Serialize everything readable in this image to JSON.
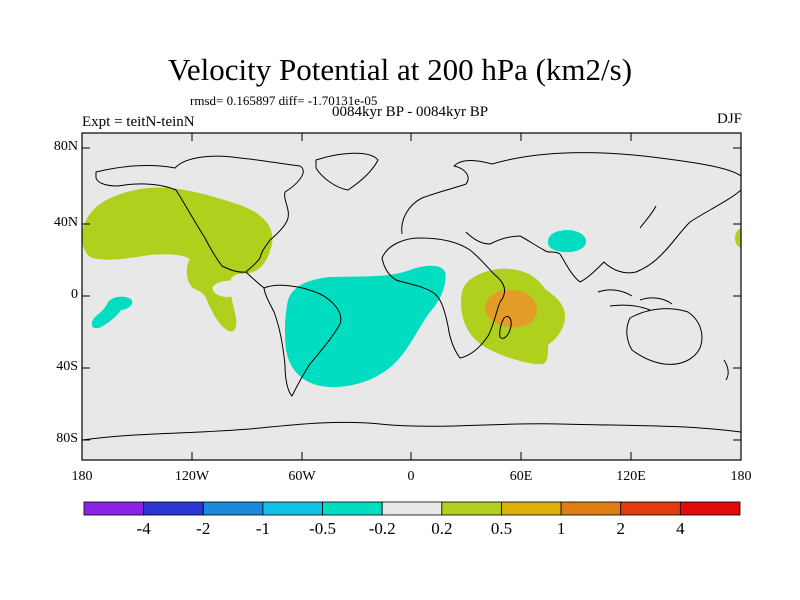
{
  "title": "Velocity Potential at 200 hPa (km2/s)",
  "stats": "rmsd= 0.165897 diff= -1.70131e-05",
  "period": "0084kyr BP - 0084kyr BP",
  "experiment": "Expt = teitN-teinN",
  "season": "DJF",
  "map": {
    "background_color": "#e8e8e8",
    "lat_labels": [
      "80N",
      "40N",
      "0",
      "40S",
      "80S"
    ],
    "lon_labels": [
      "180",
      "120W",
      "60W",
      "0",
      "60E",
      "120E",
      "180"
    ],
    "anomalies": [
      {
        "name": "north-pacific-positive",
        "color": "#b0d01e"
      },
      {
        "name": "south-america-atlantic-negative",
        "color": "#00ddc0"
      },
      {
        "name": "east-africa-positive",
        "color": "#b0d01e"
      },
      {
        "name": "east-africa-core",
        "color": "#e39c27"
      },
      {
        "name": "india-negative",
        "color": "#00ddc0"
      },
      {
        "name": "pacific-small-negative",
        "color": "#00ddc0"
      }
    ]
  },
  "colorbar": {
    "colors": [
      "#8a22e8",
      "#2a36d4",
      "#1a8ae0",
      "#11c2e8",
      "#00ddc0",
      "#e8e8e8",
      "#b0d01e",
      "#dcb10c",
      "#e07d12",
      "#e33a10",
      "#e30a0a"
    ],
    "labels": [
      "-4",
      "-2",
      "-1",
      "-0.5",
      "-0.2",
      "0.2",
      "0.5",
      "1",
      "2",
      "4"
    ]
  }
}
